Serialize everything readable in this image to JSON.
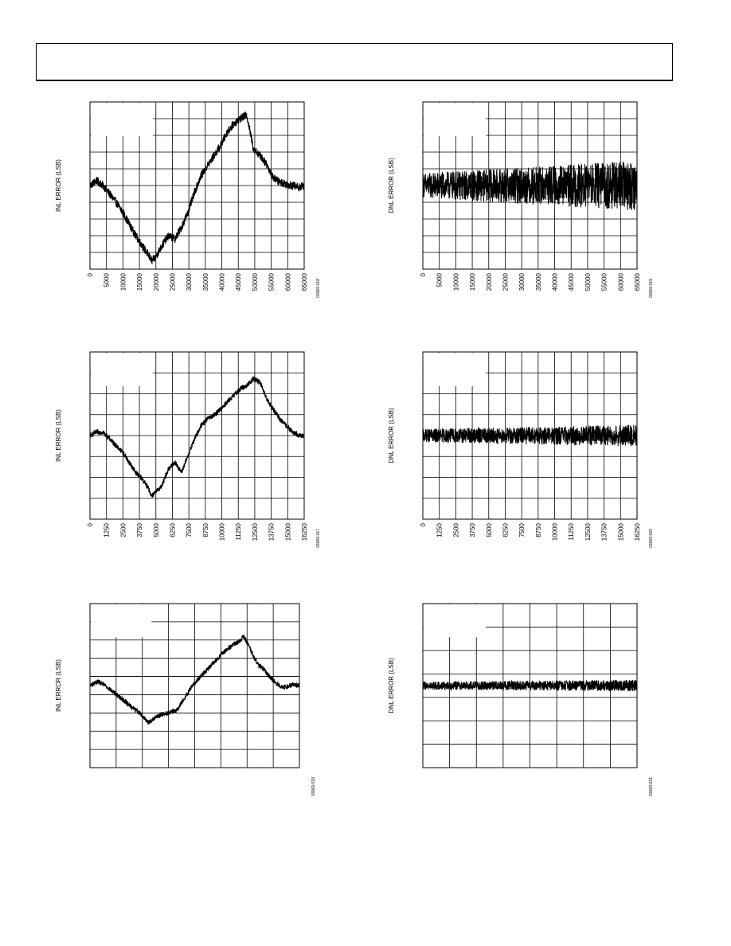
{
  "colors": {
    "line": "#000000",
    "grid": "#000000",
    "background": "#ffffff"
  },
  "chart_data": [
    {
      "type": "line",
      "ylabel": "INL ERROR (LSB)",
      "xticks": [
        "0",
        "5000",
        "10000",
        "15000",
        "20000",
        "25000",
        "30000",
        "35000",
        "40000",
        "45000",
        "50000",
        "55000",
        "60000",
        "65000"
      ],
      "xlim": [
        0,
        65536
      ],
      "ylim": [
        -5,
        5
      ],
      "grid": true,
      "code": "03069-018",
      "series": [
        {
          "x": [
            0,
            2000,
            4000,
            6000,
            8000,
            10000,
            12000,
            14000,
            16000,
            18000,
            19000,
            20000,
            22000,
            24000,
            26000,
            28000,
            30000,
            32000,
            34000,
            36000,
            38000,
            40000,
            42000,
            44000,
            46000,
            48000,
            49000,
            50000,
            52000,
            54000,
            56000,
            58000,
            60000,
            62000,
            64000,
            65535
          ],
          "y": [
            0.0,
            0.3,
            0.0,
            -0.5,
            -1.0,
            -1.6,
            -2.3,
            -3.0,
            -3.6,
            -4.2,
            -4.5,
            -4.3,
            -3.6,
            -3.0,
            -3.2,
            -2.5,
            -1.6,
            -0.4,
            0.6,
            1.2,
            1.8,
            2.4,
            3.2,
            3.7,
            4.0,
            4.2,
            3.2,
            2.2,
            1.8,
            1.3,
            0.5,
            0.2,
            0.1,
            0.0,
            -0.1,
            0.0
          ],
          "noise": 0.25
        }
      ]
    },
    {
      "type": "line",
      "ylabel": "DNL ERROR (LSB)",
      "xticks": [
        "0",
        "5000",
        "10000",
        "15000",
        "20000",
        "25000",
        "30000",
        "35000",
        "40000",
        "45000",
        "50000",
        "55000",
        "60000",
        "65000"
      ],
      "xlim": [
        0,
        65536
      ],
      "ylim": [
        -1,
        1
      ],
      "grid": true,
      "code": "03069-019",
      "series": [
        {
          "x": [
            0,
            65535
          ],
          "y": [
            0,
            0
          ],
          "noise_start": 0.15,
          "noise_end": 0.3
        }
      ]
    },
    {
      "type": "line",
      "ylabel": "INL ERROR (LSB)",
      "xticks": [
        "0",
        "1250",
        "2500",
        "3750",
        "5000",
        "6250",
        "7500",
        "8750",
        "10000",
        "11250",
        "12500",
        "13750",
        "15000",
        "16250"
      ],
      "xlim": [
        0,
        16384
      ],
      "ylim": [
        -2.5,
        2.5
      ],
      "grid": true,
      "code": "03069-017",
      "series": [
        {
          "x": [
            0,
            500,
            1000,
            1500,
            2000,
            2500,
            3000,
            3500,
            4000,
            4500,
            4700,
            5000,
            5500,
            6000,
            6500,
            7000,
            7500,
            8000,
            8500,
            9000,
            9500,
            10000,
            10500,
            11000,
            11500,
            12000,
            12500,
            13000,
            13500,
            14000,
            14500,
            15000,
            15500,
            16000,
            16383
          ],
          "y": [
            0.0,
            0.1,
            0.1,
            -0.1,
            -0.3,
            -0.5,
            -0.8,
            -1.1,
            -1.3,
            -1.6,
            -1.8,
            -1.7,
            -1.5,
            -1.0,
            -0.8,
            -1.1,
            -0.6,
            -0.1,
            0.3,
            0.5,
            0.6,
            0.8,
            1.0,
            1.2,
            1.4,
            1.5,
            1.7,
            1.6,
            1.1,
            0.8,
            0.5,
            0.3,
            0.1,
            0.0,
            0.0
          ],
          "noise": 0.08
        }
      ]
    },
    {
      "type": "line",
      "ylabel": "DNL ERROR (LSB)",
      "xticks": [
        "0",
        "1250",
        "2500",
        "3750",
        "5000",
        "6250",
        "7500",
        "8750",
        "10000",
        "11250",
        "12500",
        "13750",
        "15000",
        "16250"
      ],
      "xlim": [
        0,
        16384
      ],
      "ylim": [
        -1,
        1
      ],
      "grid": true,
      "code": "03069-020",
      "series": [
        {
          "x": [
            0,
            16383
          ],
          "y": [
            0,
            0
          ],
          "noise_start": 0.08,
          "noise_end": 0.13
        }
      ]
    },
    {
      "type": "line",
      "ylabel": "INL ERROR (LSB)",
      "xticks": [],
      "xlim": [
        0,
        4096
      ],
      "ylim": [
        -1,
        1
      ],
      "grid": true,
      "code": "03069-018",
      "series": [
        {
          "x": [
            0,
            150,
            300,
            500,
            700,
            900,
            1000,
            1100,
            1150,
            1250,
            1400,
            1550,
            1700,
            1800,
            1900,
            2000,
            2150,
            2300,
            2450,
            2600,
            2800,
            2950,
            3000,
            3100,
            3200,
            3300,
            3400,
            3500,
            3600,
            3700,
            3800,
            3900,
            4000,
            4095
          ],
          "y": [
            0.0,
            0.05,
            0.0,
            -0.1,
            -0.2,
            -0.3,
            -0.35,
            -0.42,
            -0.45,
            -0.4,
            -0.35,
            -0.33,
            -0.3,
            -0.2,
            -0.1,
            0.0,
            0.1,
            0.2,
            0.3,
            0.4,
            0.5,
            0.55,
            0.6,
            0.5,
            0.35,
            0.25,
            0.2,
            0.12,
            0.05,
            0.0,
            -0.02,
            0.0,
            0.01,
            0.0
          ],
          "noise": 0.03
        }
      ]
    },
    {
      "type": "line",
      "ylabel": "DNL ERROR (LSB)",
      "xticks": [],
      "xlim": [
        0,
        4096
      ],
      "ylim": [
        -0.5,
        0.5
      ],
      "grid": true,
      "code": "03069-021",
      "series": [
        {
          "x": [
            0,
            4095
          ],
          "y": [
            0,
            0
          ],
          "noise_start": 0.025,
          "noise_end": 0.035
        }
      ]
    }
  ]
}
